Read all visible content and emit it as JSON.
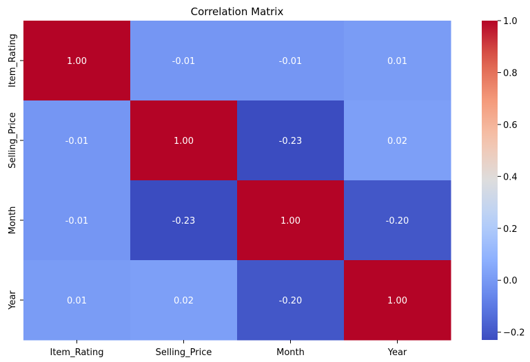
{
  "chart_data": {
    "type": "heatmap",
    "title": "Correlation Matrix",
    "xlabel": "",
    "ylabel": "",
    "rows": [
      "Item_Rating",
      "Selling_Price",
      "Month",
      "Year"
    ],
    "columns": [
      "Item_Rating",
      "Selling_Price",
      "Month",
      "Year"
    ],
    "values": [
      [
        1.0,
        -0.01,
        -0.01,
        0.01
      ],
      [
        -0.01,
        1.0,
        -0.23,
        0.02
      ],
      [
        -0.01,
        -0.23,
        1.0,
        -0.2
      ],
      [
        0.01,
        0.02,
        -0.2,
        1.0
      ]
    ],
    "value_format": "0.00",
    "colormap": "coolwarm",
    "vmin": -0.23,
    "vmax": 1.0,
    "colorbar": {
      "ticks": [
        -0.2,
        0.0,
        0.2,
        0.4,
        0.6,
        0.8,
        1.0
      ],
      "tick_labels": [
        "−0.2",
        "0.0",
        "0.2",
        "0.4",
        "0.6",
        "0.8",
        "1.0"
      ],
      "position": "right"
    },
    "grid": false,
    "annotation_color": "#ffffff"
  }
}
